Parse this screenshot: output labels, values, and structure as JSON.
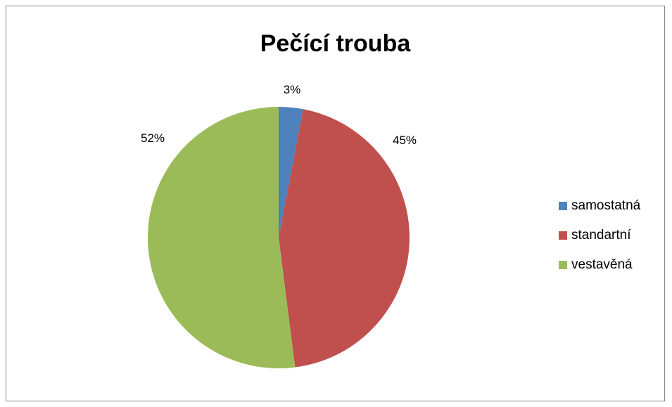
{
  "chart_data": {
    "type": "pie",
    "title": "Pečící trouba",
    "categories": [
      "samostatná",
      "standartní",
      "vestavěná"
    ],
    "values": [
      3,
      45,
      52
    ],
    "data_labels": [
      "3%",
      "45%",
      "52%"
    ],
    "colors": [
      "#4f81bd",
      "#c0504d",
      "#9bbb59"
    ],
    "legend_position": "right"
  }
}
